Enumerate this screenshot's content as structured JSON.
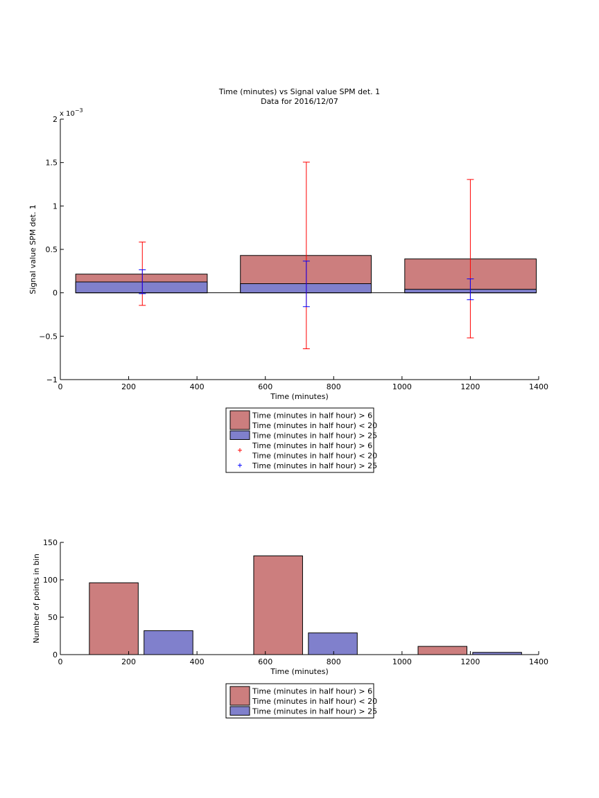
{
  "chart_data": [
    {
      "type": "bar",
      "title": "Time (minutes) vs Signal value SPM det. 1",
      "subtitle": "Data for 2016/12/07",
      "xlabel": "Time (minutes)",
      "ylabel": "Signal value SPM det. 1",
      "exponent_label": "x 10",
      "exponent_power": "−3",
      "xlim": [
        0,
        1400
      ],
      "ylim": [
        -1,
        2
      ],
      "xticks": [
        0,
        200,
        400,
        600,
        800,
        1000,
        1200,
        1400
      ],
      "xtick_labels": [
        "0",
        "200",
        "400",
        "600",
        "800",
        "1000",
        "1200",
        "1400"
      ],
      "yticks": [
        -1,
        -0.5,
        0,
        0.5,
        1,
        1.5,
        2
      ],
      "ytick_labels": [
        "−1",
        "−0.5",
        "0",
        "0.5",
        "1",
        "1.5",
        "2"
      ],
      "bar_ranges": [
        [
          45,
          430
        ],
        [
          527,
          910
        ],
        [
          1008,
          1393
        ]
      ],
      "x": [
        240,
        720,
        1200
      ],
      "series": [
        {
          "name": "Time (minutes in half hour) > 6\nTime (minutes in half hour) < 20",
          "values": [
            0.215,
            0.43,
            0.39
          ],
          "error_low": [
            -0.145,
            -0.645,
            -0.52
          ],
          "error_high": [
            0.585,
            1.505,
            1.305
          ],
          "color": "#cc7e7e",
          "error_color": "#ff0000"
        },
        {
          "name": "Time (minutes in half hour) > 25",
          "values": [
            0.125,
            0.105,
            0.04
          ],
          "error_low": [
            -0.01,
            -0.16,
            -0.08
          ],
          "error_high": [
            0.265,
            0.365,
            0.16
          ],
          "color": "#8080cc",
          "error_color": "#0000ff"
        }
      ],
      "legend": {
        "placement": "below",
        "entries": [
          {
            "kind": "patch",
            "color": "#cc7e7e",
            "lines": [
              "Time (minutes in half hour) > 6",
              "Time (minutes in half hour) < 20"
            ]
          },
          {
            "kind": "patch",
            "color": "#8080cc",
            "lines": [
              "Time (minutes in half hour) > 25"
            ]
          },
          {
            "kind": "plus",
            "color": "#ff0000",
            "lines": [
              "Time (minutes in half hour) > 6",
              "Time (minutes in half hour) < 20"
            ]
          },
          {
            "kind": "plus",
            "color": "#0000ff",
            "lines": [
              "Time (minutes in half hour) > 25"
            ]
          }
        ]
      }
    },
    {
      "type": "bar",
      "xlabel": "Time (minutes)",
      "ylabel": "Number of points in bin",
      "xlim": [
        0,
        1400
      ],
      "ylim": [
        0,
        150
      ],
      "xticks": [
        0,
        200,
        400,
        600,
        800,
        1000,
        1200,
        1400
      ],
      "xtick_labels": [
        "0",
        "200",
        "400",
        "600",
        "800",
        "1000",
        "1200",
        "1400"
      ],
      "yticks": [
        0,
        50,
        100,
        150
      ],
      "ytick_labels": [
        "0",
        "50",
        "100",
        "150"
      ],
      "bars": [
        {
          "series": 0,
          "x0": 85,
          "x1": 228,
          "value": 96
        },
        {
          "series": 1,
          "x0": 245,
          "x1": 388,
          "value": 32
        },
        {
          "series": 0,
          "x0": 566,
          "x1": 709,
          "value": 132
        },
        {
          "series": 1,
          "x0": 726,
          "x1": 869,
          "value": 29
        },
        {
          "series": 0,
          "x0": 1047,
          "x1": 1190,
          "value": 11
        },
        {
          "series": 1,
          "x0": 1207,
          "x1": 1350,
          "value": 3
        }
      ],
      "series": [
        {
          "name": "Time (minutes in half hour) > 6\nTime (minutes in half hour) < 20",
          "values": [
            96,
            132,
            11
          ],
          "color": "#cc7e7e"
        },
        {
          "name": "Time (minutes in half hour) > 25",
          "values": [
            32,
            29,
            3
          ],
          "color": "#8080cc"
        }
      ],
      "legend": {
        "placement": "below",
        "entries": [
          {
            "kind": "patch",
            "color": "#cc7e7e",
            "lines": [
              "Time (minutes in half hour) > 6",
              "Time (minutes in half hour) < 20"
            ]
          },
          {
            "kind": "patch",
            "color": "#8080cc",
            "lines": [
              "Time (minutes in half hour) > 25"
            ]
          }
        ]
      }
    }
  ]
}
